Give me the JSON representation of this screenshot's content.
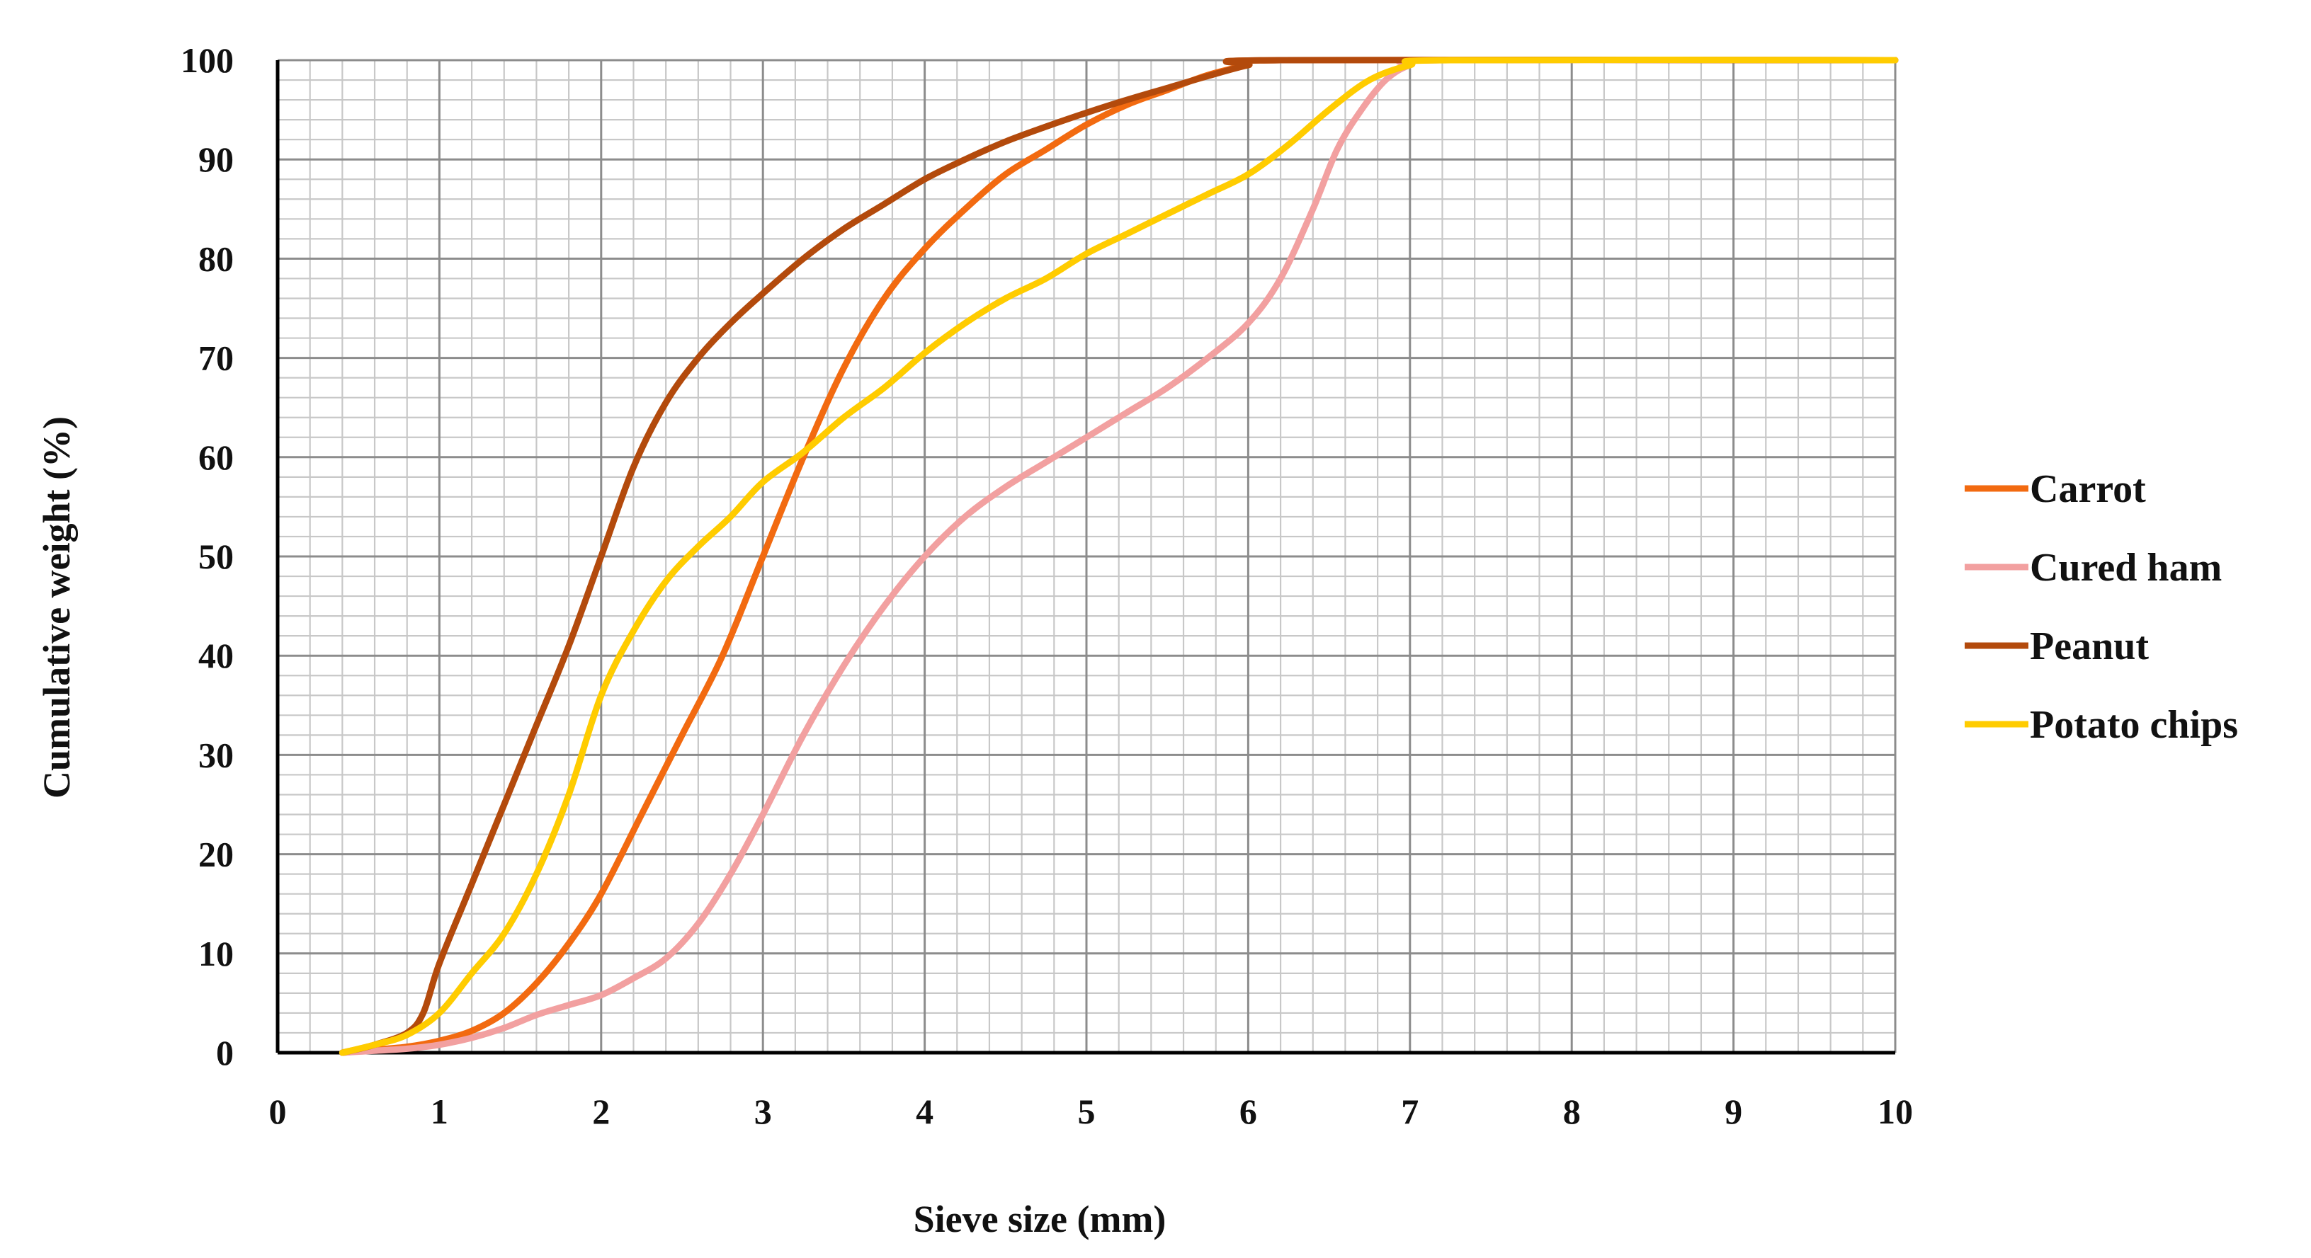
{
  "chart_data": {
    "type": "line",
    "title": "",
    "xlabel": "Sieve size (mm)",
    "ylabel": "Cumulative weight (%)",
    "xlim": [
      0,
      10
    ],
    "ylim": [
      0,
      100
    ],
    "x_major_ticks": [
      0,
      1,
      2,
      3,
      4,
      5,
      6,
      7,
      8,
      9,
      10
    ],
    "y_major_ticks": [
      0,
      10,
      20,
      30,
      40,
      50,
      60,
      70,
      80,
      90,
      100
    ],
    "x_minor_step": 0.2,
    "y_minor_step": 2,
    "grid": true,
    "legend_position": "right",
    "series": [
      {
        "name": "Carrot",
        "color": "#f26a10",
        "points": [
          [
            0.4,
            0
          ],
          [
            0.6,
            0.3
          ],
          [
            0.8,
            0.6
          ],
          [
            1.0,
            1.2
          ],
          [
            1.2,
            2.2
          ],
          [
            1.4,
            4
          ],
          [
            1.6,
            7
          ],
          [
            1.8,
            11
          ],
          [
            2.0,
            16
          ],
          [
            2.25,
            24
          ],
          [
            2.5,
            32
          ],
          [
            2.75,
            40
          ],
          [
            3.0,
            50
          ],
          [
            3.25,
            60
          ],
          [
            3.5,
            69
          ],
          [
            3.75,
            76
          ],
          [
            4.0,
            81
          ],
          [
            4.25,
            85
          ],
          [
            4.5,
            88.5
          ],
          [
            4.75,
            91
          ],
          [
            5.0,
            93.5
          ],
          [
            5.25,
            95.5
          ],
          [
            5.5,
            97
          ],
          [
            5.75,
            98.5
          ],
          [
            6.0,
            99.5
          ],
          [
            6.2,
            100
          ],
          [
            10,
            100
          ]
        ]
      },
      {
        "name": "Cured ham",
        "color": "#f2a0a0",
        "points": [
          [
            0.4,
            0
          ],
          [
            0.6,
            0.2
          ],
          [
            0.8,
            0.4
          ],
          [
            1.0,
            0.8
          ],
          [
            1.2,
            1.5
          ],
          [
            1.4,
            2.5
          ],
          [
            1.6,
            3.8
          ],
          [
            1.8,
            4.8
          ],
          [
            2.0,
            5.8
          ],
          [
            2.2,
            7.5
          ],
          [
            2.4,
            9.5
          ],
          [
            2.6,
            13
          ],
          [
            2.8,
            18
          ],
          [
            3.0,
            24
          ],
          [
            3.25,
            32
          ],
          [
            3.5,
            39
          ],
          [
            3.75,
            45
          ],
          [
            4.0,
            50
          ],
          [
            4.25,
            54
          ],
          [
            4.5,
            57
          ],
          [
            4.75,
            59.5
          ],
          [
            5.0,
            62
          ],
          [
            5.25,
            64.5
          ],
          [
            5.5,
            67
          ],
          [
            5.75,
            70
          ],
          [
            6.0,
            73.5
          ],
          [
            6.2,
            78
          ],
          [
            6.4,
            85
          ],
          [
            6.55,
            91
          ],
          [
            6.7,
            95
          ],
          [
            6.85,
            98
          ],
          [
            7.0,
            99.5
          ],
          [
            7.2,
            100
          ],
          [
            10,
            100
          ]
        ]
      },
      {
        "name": "Peanut",
        "color": "#b34a0c",
        "points": [
          [
            0.4,
            0
          ],
          [
            0.6,
            0.8
          ],
          [
            0.8,
            2
          ],
          [
            0.9,
            4
          ],
          [
            1.0,
            9
          ],
          [
            1.2,
            17
          ],
          [
            1.4,
            25
          ],
          [
            1.6,
            33
          ],
          [
            1.8,
            41
          ],
          [
            2.0,
            50
          ],
          [
            2.2,
            59
          ],
          [
            2.4,
            65.5
          ],
          [
            2.6,
            70
          ],
          [
            2.8,
            73.5
          ],
          [
            3.0,
            76.5
          ],
          [
            3.25,
            80
          ],
          [
            3.5,
            83
          ],
          [
            3.75,
            85.5
          ],
          [
            4.0,
            88
          ],
          [
            4.25,
            90
          ],
          [
            4.5,
            91.8
          ],
          [
            4.75,
            93.3
          ],
          [
            5.0,
            94.7
          ],
          [
            5.25,
            96
          ],
          [
            5.5,
            97.2
          ],
          [
            5.75,
            98.4
          ],
          [
            6.0,
            99.5
          ],
          [
            6.2,
            100
          ],
          [
            10,
            100
          ]
        ]
      },
      {
        "name": "Potato chips",
        "color": "#ffcc00",
        "points": [
          [
            0.4,
            0
          ],
          [
            0.6,
            0.8
          ],
          [
            0.8,
            1.8
          ],
          [
            1.0,
            4
          ],
          [
            1.2,
            8
          ],
          [
            1.4,
            12
          ],
          [
            1.6,
            18
          ],
          [
            1.8,
            26
          ],
          [
            2.0,
            36
          ],
          [
            2.2,
            42.5
          ],
          [
            2.4,
            47.5
          ],
          [
            2.6,
            51
          ],
          [
            2.8,
            54
          ],
          [
            3.0,
            57.5
          ],
          [
            3.25,
            60.5
          ],
          [
            3.5,
            64
          ],
          [
            3.75,
            67
          ],
          [
            4.0,
            70.5
          ],
          [
            4.25,
            73.5
          ],
          [
            4.5,
            76
          ],
          [
            4.75,
            78
          ],
          [
            5.0,
            80.5
          ],
          [
            5.25,
            82.5
          ],
          [
            5.5,
            84.5
          ],
          [
            5.75,
            86.5
          ],
          [
            6.0,
            88.5
          ],
          [
            6.25,
            91.5
          ],
          [
            6.5,
            95
          ],
          [
            6.75,
            98
          ],
          [
            7.0,
            99.5
          ],
          [
            7.25,
            100
          ],
          [
            10,
            100
          ]
        ]
      }
    ]
  }
}
